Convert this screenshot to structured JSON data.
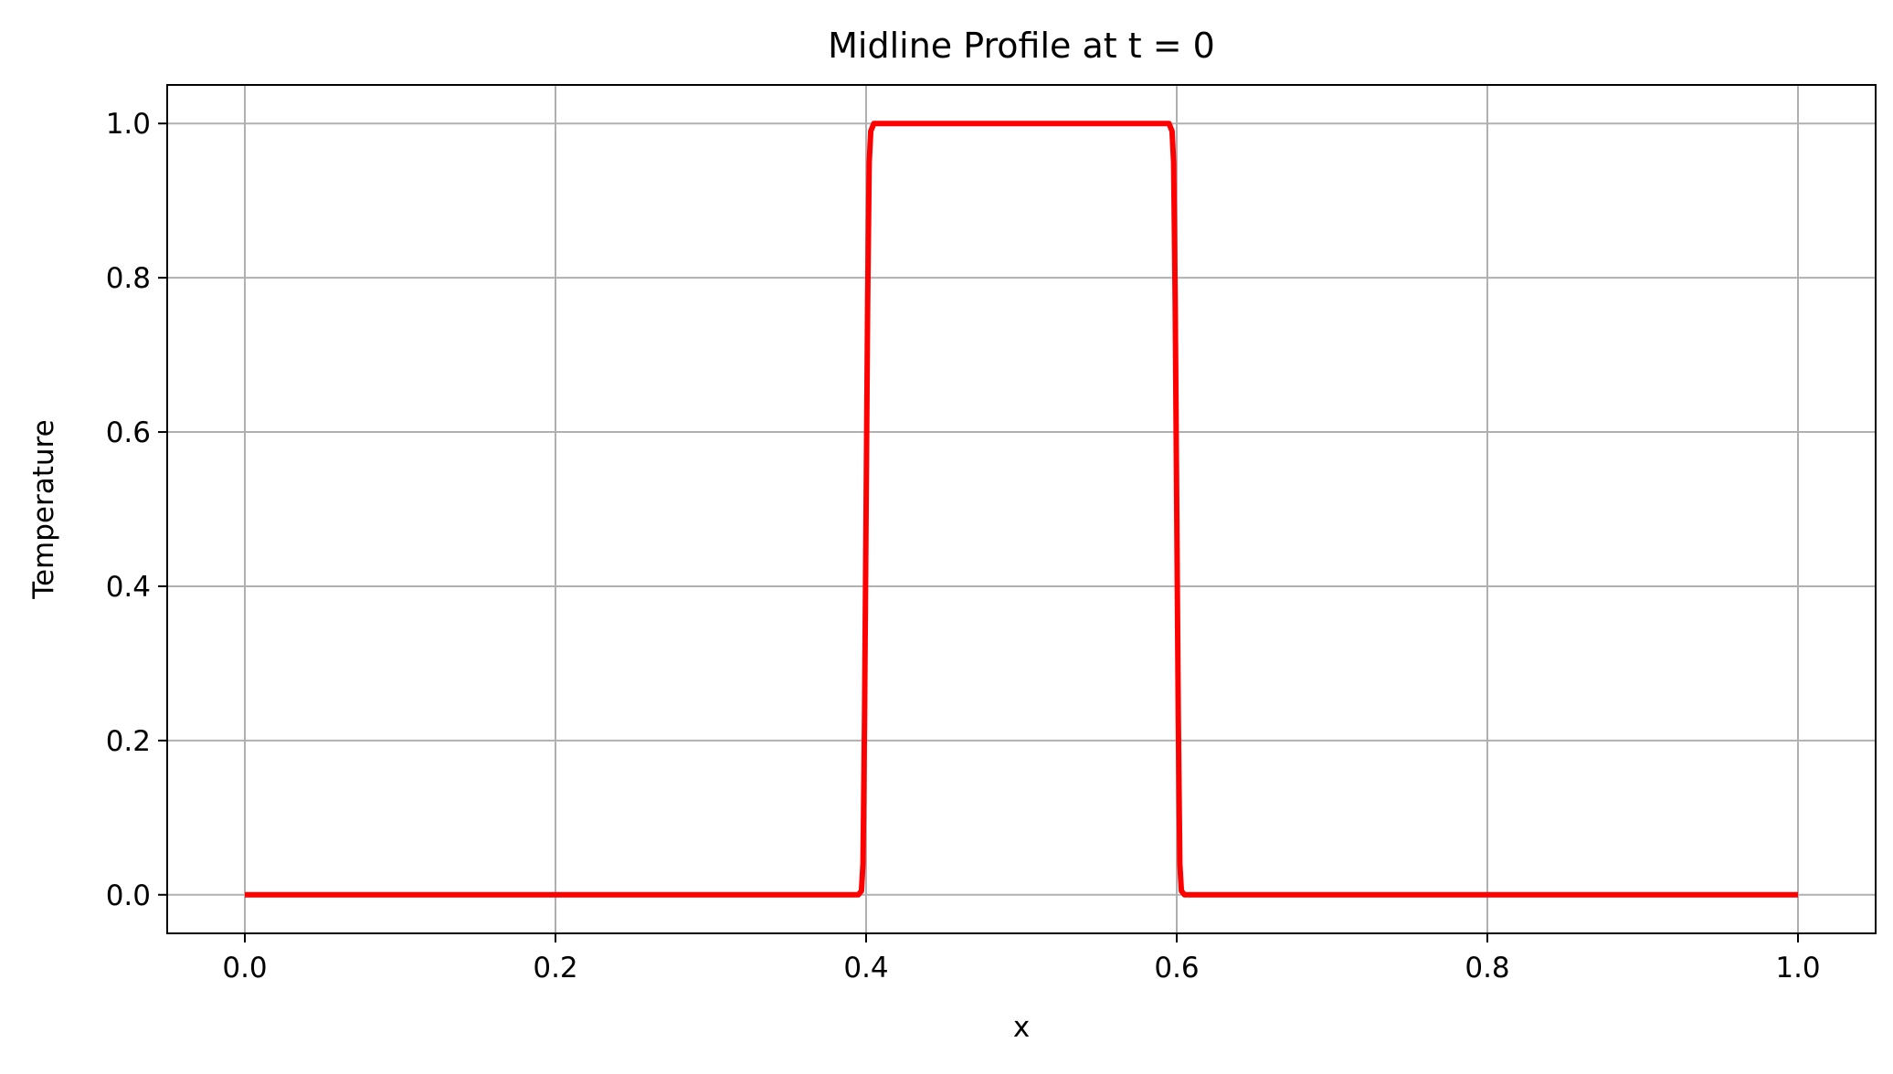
{
  "chart_data": {
    "type": "line",
    "title": "Midline Profile at t = 0",
    "xlabel": "x",
    "ylabel": "Temperature",
    "xlim": [
      -0.05,
      1.05
    ],
    "ylim": [
      -0.05,
      1.05
    ],
    "xticks": [
      0.0,
      0.2,
      0.4,
      0.6,
      0.8,
      1.0
    ],
    "xtick_labels": [
      "0.0",
      "0.2",
      "0.4",
      "0.6",
      "0.8",
      "1.0"
    ],
    "yticks": [
      0.0,
      0.2,
      0.4,
      0.6,
      0.8,
      1.0
    ],
    "ytick_labels": [
      "0.0",
      "0.2",
      "0.4",
      "0.6",
      "0.8",
      "1.0"
    ],
    "grid": true,
    "legend": "none",
    "series": [
      {
        "color": "#ff0000",
        "x": [
          0.0,
          0.395,
          0.397,
          0.398,
          0.399,
          0.4,
          0.401,
          0.402,
          0.403,
          0.405,
          0.41,
          0.59,
          0.595,
          0.597,
          0.598,
          0.599,
          0.6,
          0.601,
          0.602,
          0.603,
          0.605,
          1.0
        ],
        "y": [
          0.0,
          0.0,
          0.005,
          0.04,
          0.23,
          0.5,
          0.77,
          0.95,
          0.99,
          1.0,
          1.0,
          1.0,
          1.0,
          0.99,
          0.95,
          0.77,
          0.5,
          0.23,
          0.04,
          0.005,
          0.0,
          0.0
        ]
      }
    ]
  },
  "colors": {
    "line": "#ff0000",
    "grid": "#b0b0b0",
    "axes": "#000000"
  }
}
